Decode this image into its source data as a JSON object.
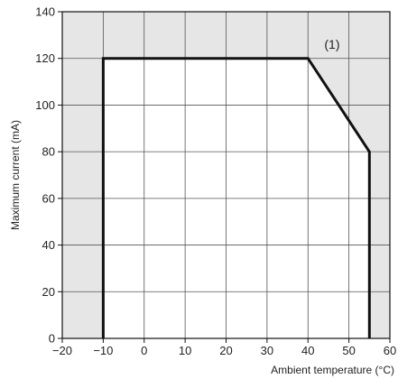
{
  "chart_data": {
    "type": "area",
    "title": "",
    "xlabel": "Ambient temperature (°C)",
    "ylabel": "Maximum current (mA)",
    "xlim": [
      -20,
      60
    ],
    "ylim": [
      0,
      140
    ],
    "xticks": [
      -20,
      -10,
      0,
      10,
      20,
      30,
      40,
      50,
      60
    ],
    "yticks": [
      0,
      20,
      40,
      60,
      80,
      100,
      120,
      140
    ],
    "x_tick_labels": [
      "−20",
      "−10",
      "0",
      "10",
      "20",
      "30",
      "40",
      "50",
      "60"
    ],
    "y_tick_labels": [
      "0",
      "20",
      "40",
      "60",
      "80",
      "100",
      "120",
      "140"
    ],
    "grid": true,
    "series": [
      {
        "x": [
          -10,
          -10,
          40,
          55,
          55
        ],
        "y": [
          0,
          120,
          120,
          80,
          0
        ]
      }
    ],
    "annotations": [
      {
        "text": "(1)",
        "x": 44,
        "y": 126
      }
    ],
    "colors": {
      "outside": "#e6e6e6",
      "inside": "#ffffff",
      "boundary": "#111111",
      "grid": "#555555"
    }
  }
}
